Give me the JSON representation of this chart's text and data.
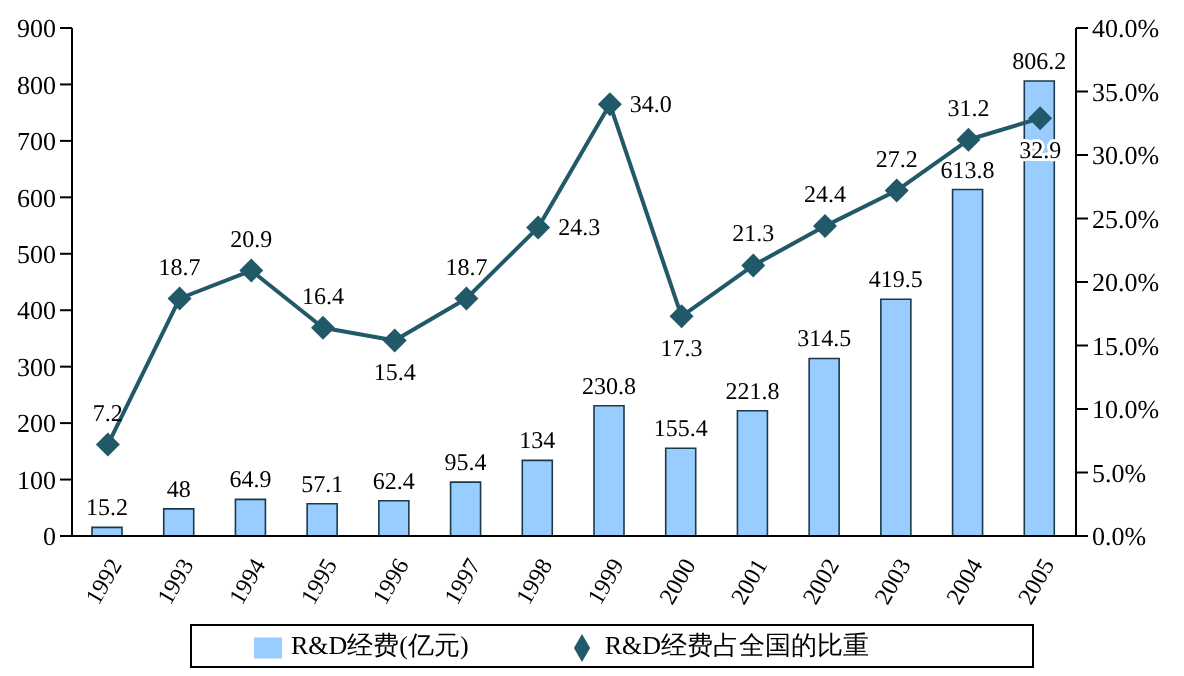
{
  "chart_data": {
    "type": "bar",
    "categories": [
      "1992",
      "1993",
      "1994",
      "1995",
      "1996",
      "1997",
      "1998",
      "1999",
      "2000",
      "2001",
      "2002",
      "2003",
      "2004",
      "2005"
    ],
    "series": [
      {
        "name": "R&D经费(亿元)",
        "color": "#99ccff",
        "values": [
          15.2,
          48,
          64.9,
          57.1,
          62.4,
          95.4,
          134,
          230.8,
          155.4,
          221.8,
          314.5,
          419.5,
          613.8,
          806.2
        ]
      },
      {
        "name": "R&D经费占全国的比重",
        "type": "line",
        "axis": "y2",
        "color": "#215968",
        "marker": "diamond",
        "values": [
          7.2,
          18.7,
          20.9,
          16.4,
          15.4,
          18.7,
          24.3,
          34.0,
          17.3,
          21.3,
          24.4,
          27.2,
          31.2,
          32.9
        ],
        "value_labels": [
          "7.2",
          "18.7",
          "20.9",
          "16.4",
          "15.4",
          "18.7",
          "24.3",
          "34.0",
          "17.3",
          "21.3",
          "24.4",
          "27.2",
          "31.2",
          "32.9"
        ]
      }
    ],
    "data_labels": true,
    "ylim": [
      0,
      900
    ],
    "yticks": [
      0,
      100,
      200,
      300,
      400,
      500,
      600,
      700,
      800,
      900
    ],
    "y2lim": [
      0,
      40
    ],
    "y2ticks": [
      {
        "value": 0,
        "label": "0.0%"
      },
      {
        "value": 5,
        "label": "5.0%"
      },
      {
        "value": 10,
        "label": "10.0%"
      },
      {
        "value": 15,
        "label": "15.0%"
      },
      {
        "value": 20,
        "label": "20.0%"
      },
      {
        "value": 25,
        "label": "25.0%"
      },
      {
        "value": 30,
        "label": "30.0%"
      },
      {
        "value": 35,
        "label": "35.0%"
      },
      {
        "value": 40,
        "label": "40.0%"
      }
    ],
    "legend": "bottom",
    "grid": false
  }
}
